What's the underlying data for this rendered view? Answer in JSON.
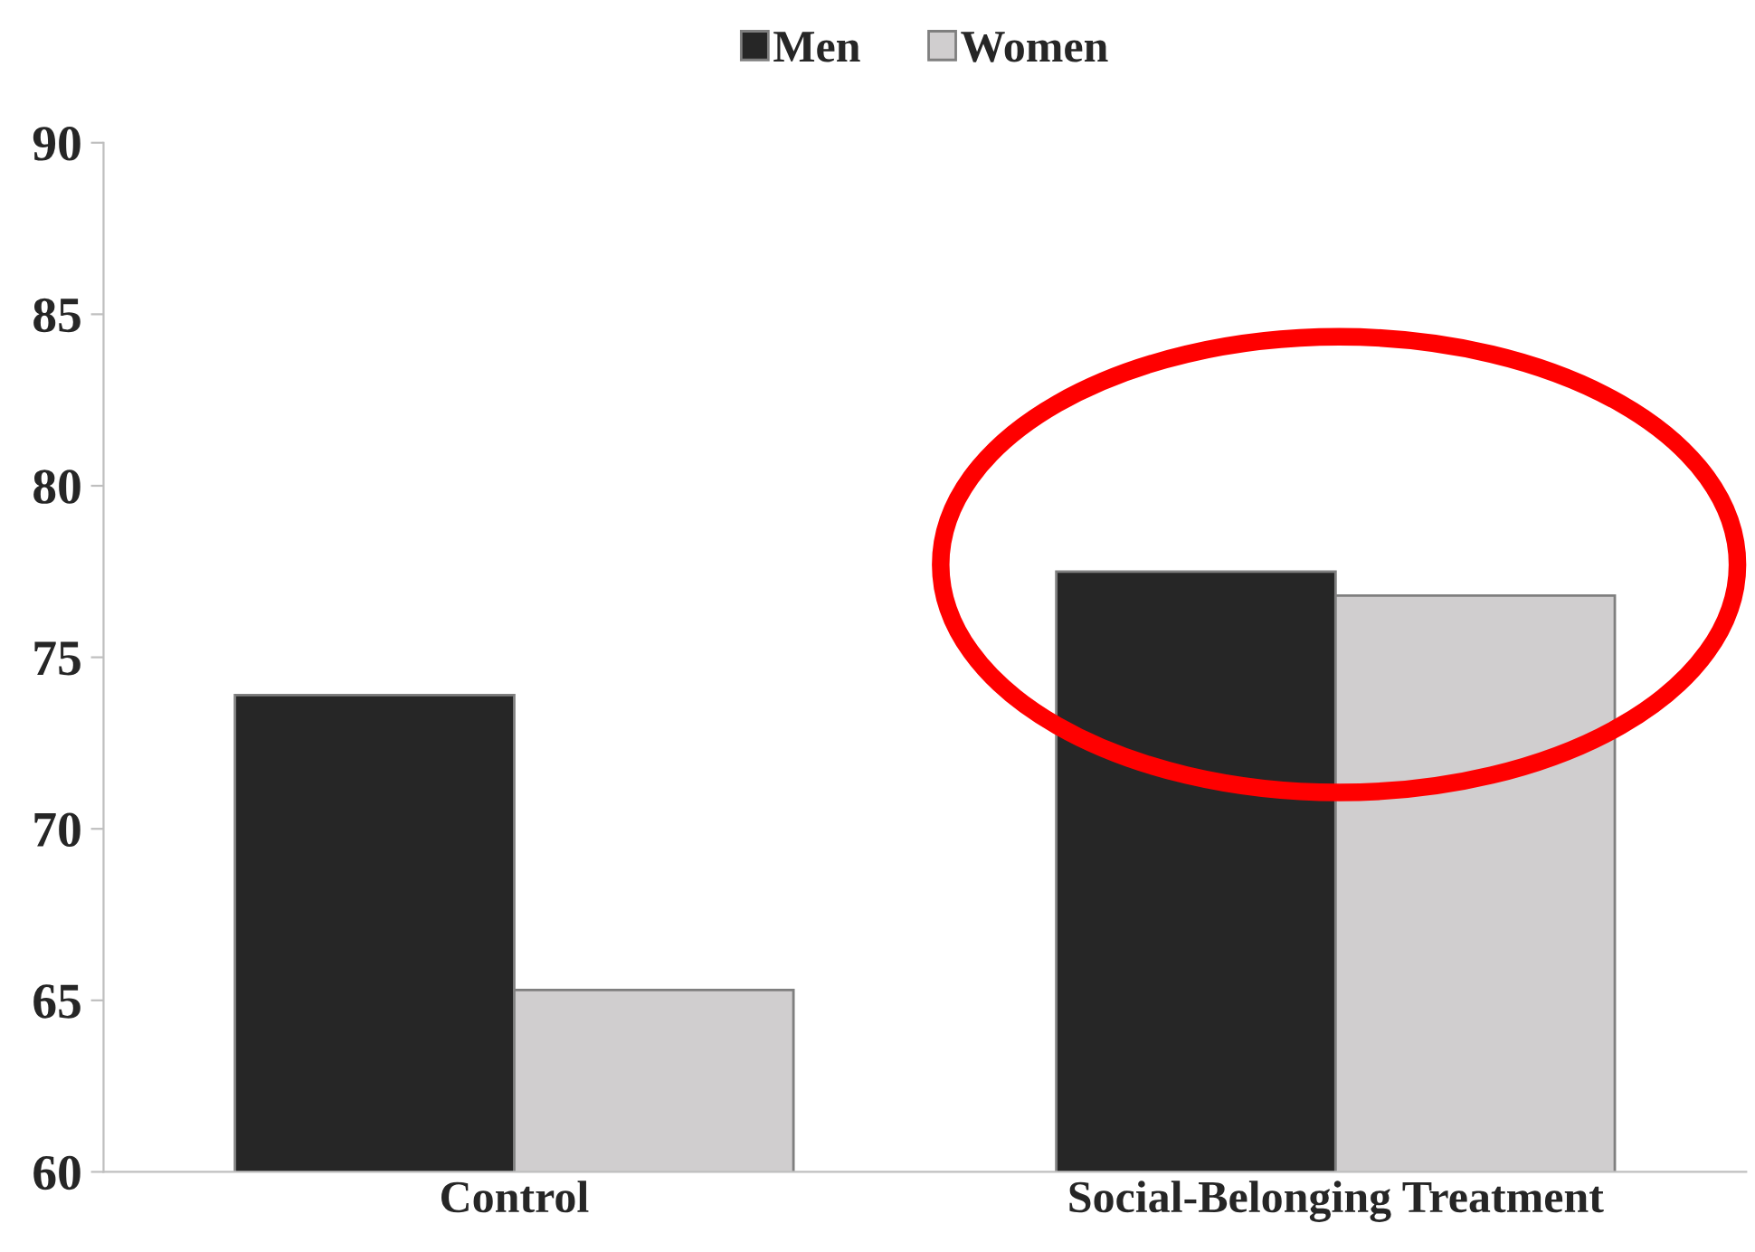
{
  "chart_data": {
    "type": "bar",
    "categories": [
      "Control",
      "Social-Belonging Treatment"
    ],
    "series": [
      {
        "name": "Men",
        "color": "#262626",
        "values": [
          73.9,
          77.5
        ]
      },
      {
        "name": "Women",
        "color": "#d0cecf",
        "values": [
          65.3,
          76.8
        ]
      }
    ],
    "ylim": [
      60,
      90
    ],
    "yticks": [
      60,
      65,
      70,
      75,
      80,
      85,
      90
    ],
    "grid": false,
    "legend": "top"
  }
}
